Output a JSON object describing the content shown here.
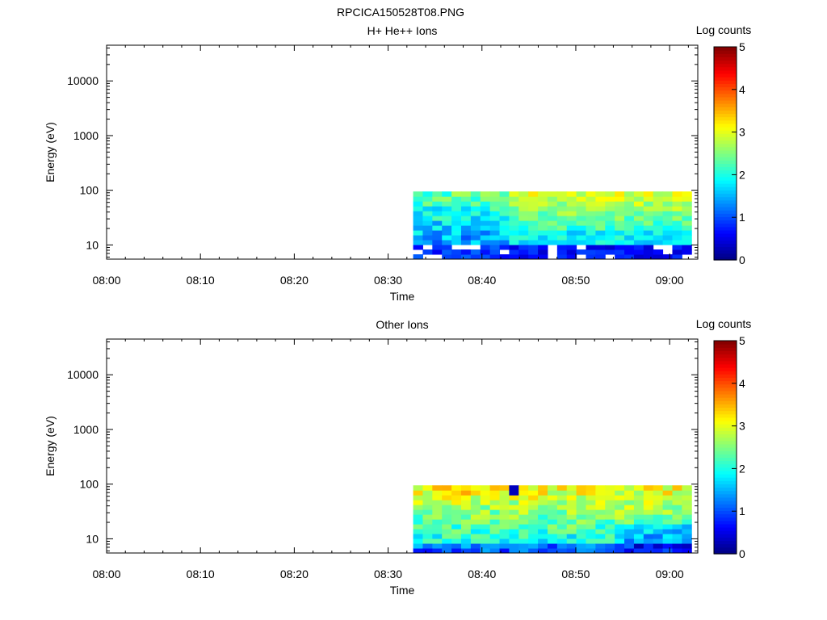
{
  "figure_title": "RPCICA150528T08.PNG",
  "chart_data": [
    {
      "type": "heatmap",
      "title": "H+ He++ Ions",
      "xlabel": "Time",
      "ylabel": "Energy (eV)",
      "x_ticks": [
        "08:00",
        "08:10",
        "08:20",
        "08:30",
        "08:40",
        "08:50",
        "09:00"
      ],
      "x_range": [
        "08:00",
        "09:03"
      ],
      "y_ticks": [
        10,
        100,
        1000,
        10000
      ],
      "y_range": [
        5.5,
        45000
      ],
      "y_scale": "log",
      "colorbar": {
        "label": "Log counts",
        "range": [
          0,
          5
        ],
        "ticks": [
          0,
          1,
          2,
          3,
          4,
          5
        ],
        "colormap": "jet"
      },
      "data_extent": {
        "time": [
          "08:32:40",
          "09:02:20"
        ],
        "energy_eV": [
          5.5,
          95
        ]
      },
      "summary": "No counts before ~08:33. From 08:33 to 08:43 patchy blue-cyan (log counts ~0.7-2). After 08:43 a band at ~20-95 eV with log counts ~1.8-3 (green-yellow); below ~12 eV dark blue (~0.3-1) with gaps."
    },
    {
      "type": "heatmap",
      "title": "Other Ions",
      "xlabel": "Time",
      "ylabel": "Energy (eV)",
      "x_ticks": [
        "08:00",
        "08:10",
        "08:20",
        "08:30",
        "08:40",
        "08:50",
        "09:00"
      ],
      "x_range": [
        "08:00",
        "09:03"
      ],
      "y_ticks": [
        10,
        100,
        1000,
        10000
      ],
      "y_range": [
        5.5,
        45000
      ],
      "y_scale": "log",
      "colorbar": {
        "label": "Log counts",
        "range": [
          0,
          5
        ],
        "ticks": [
          0,
          1,
          2,
          3,
          4,
          5
        ],
        "colormap": "jet"
      },
      "data_extent": {
        "time": [
          "08:32:40",
          "09:02:20"
        ],
        "energy_eV": [
          5.5,
          95
        ]
      },
      "summary": "No counts before ~08:33. From 08:33 to 09:02 a band at 5.5-95 eV with log counts ~1.5-3.2 (cyan-yellow), brightest near 50-95 eV and 08:36-08:39; lowest energies blue."
    }
  ]
}
